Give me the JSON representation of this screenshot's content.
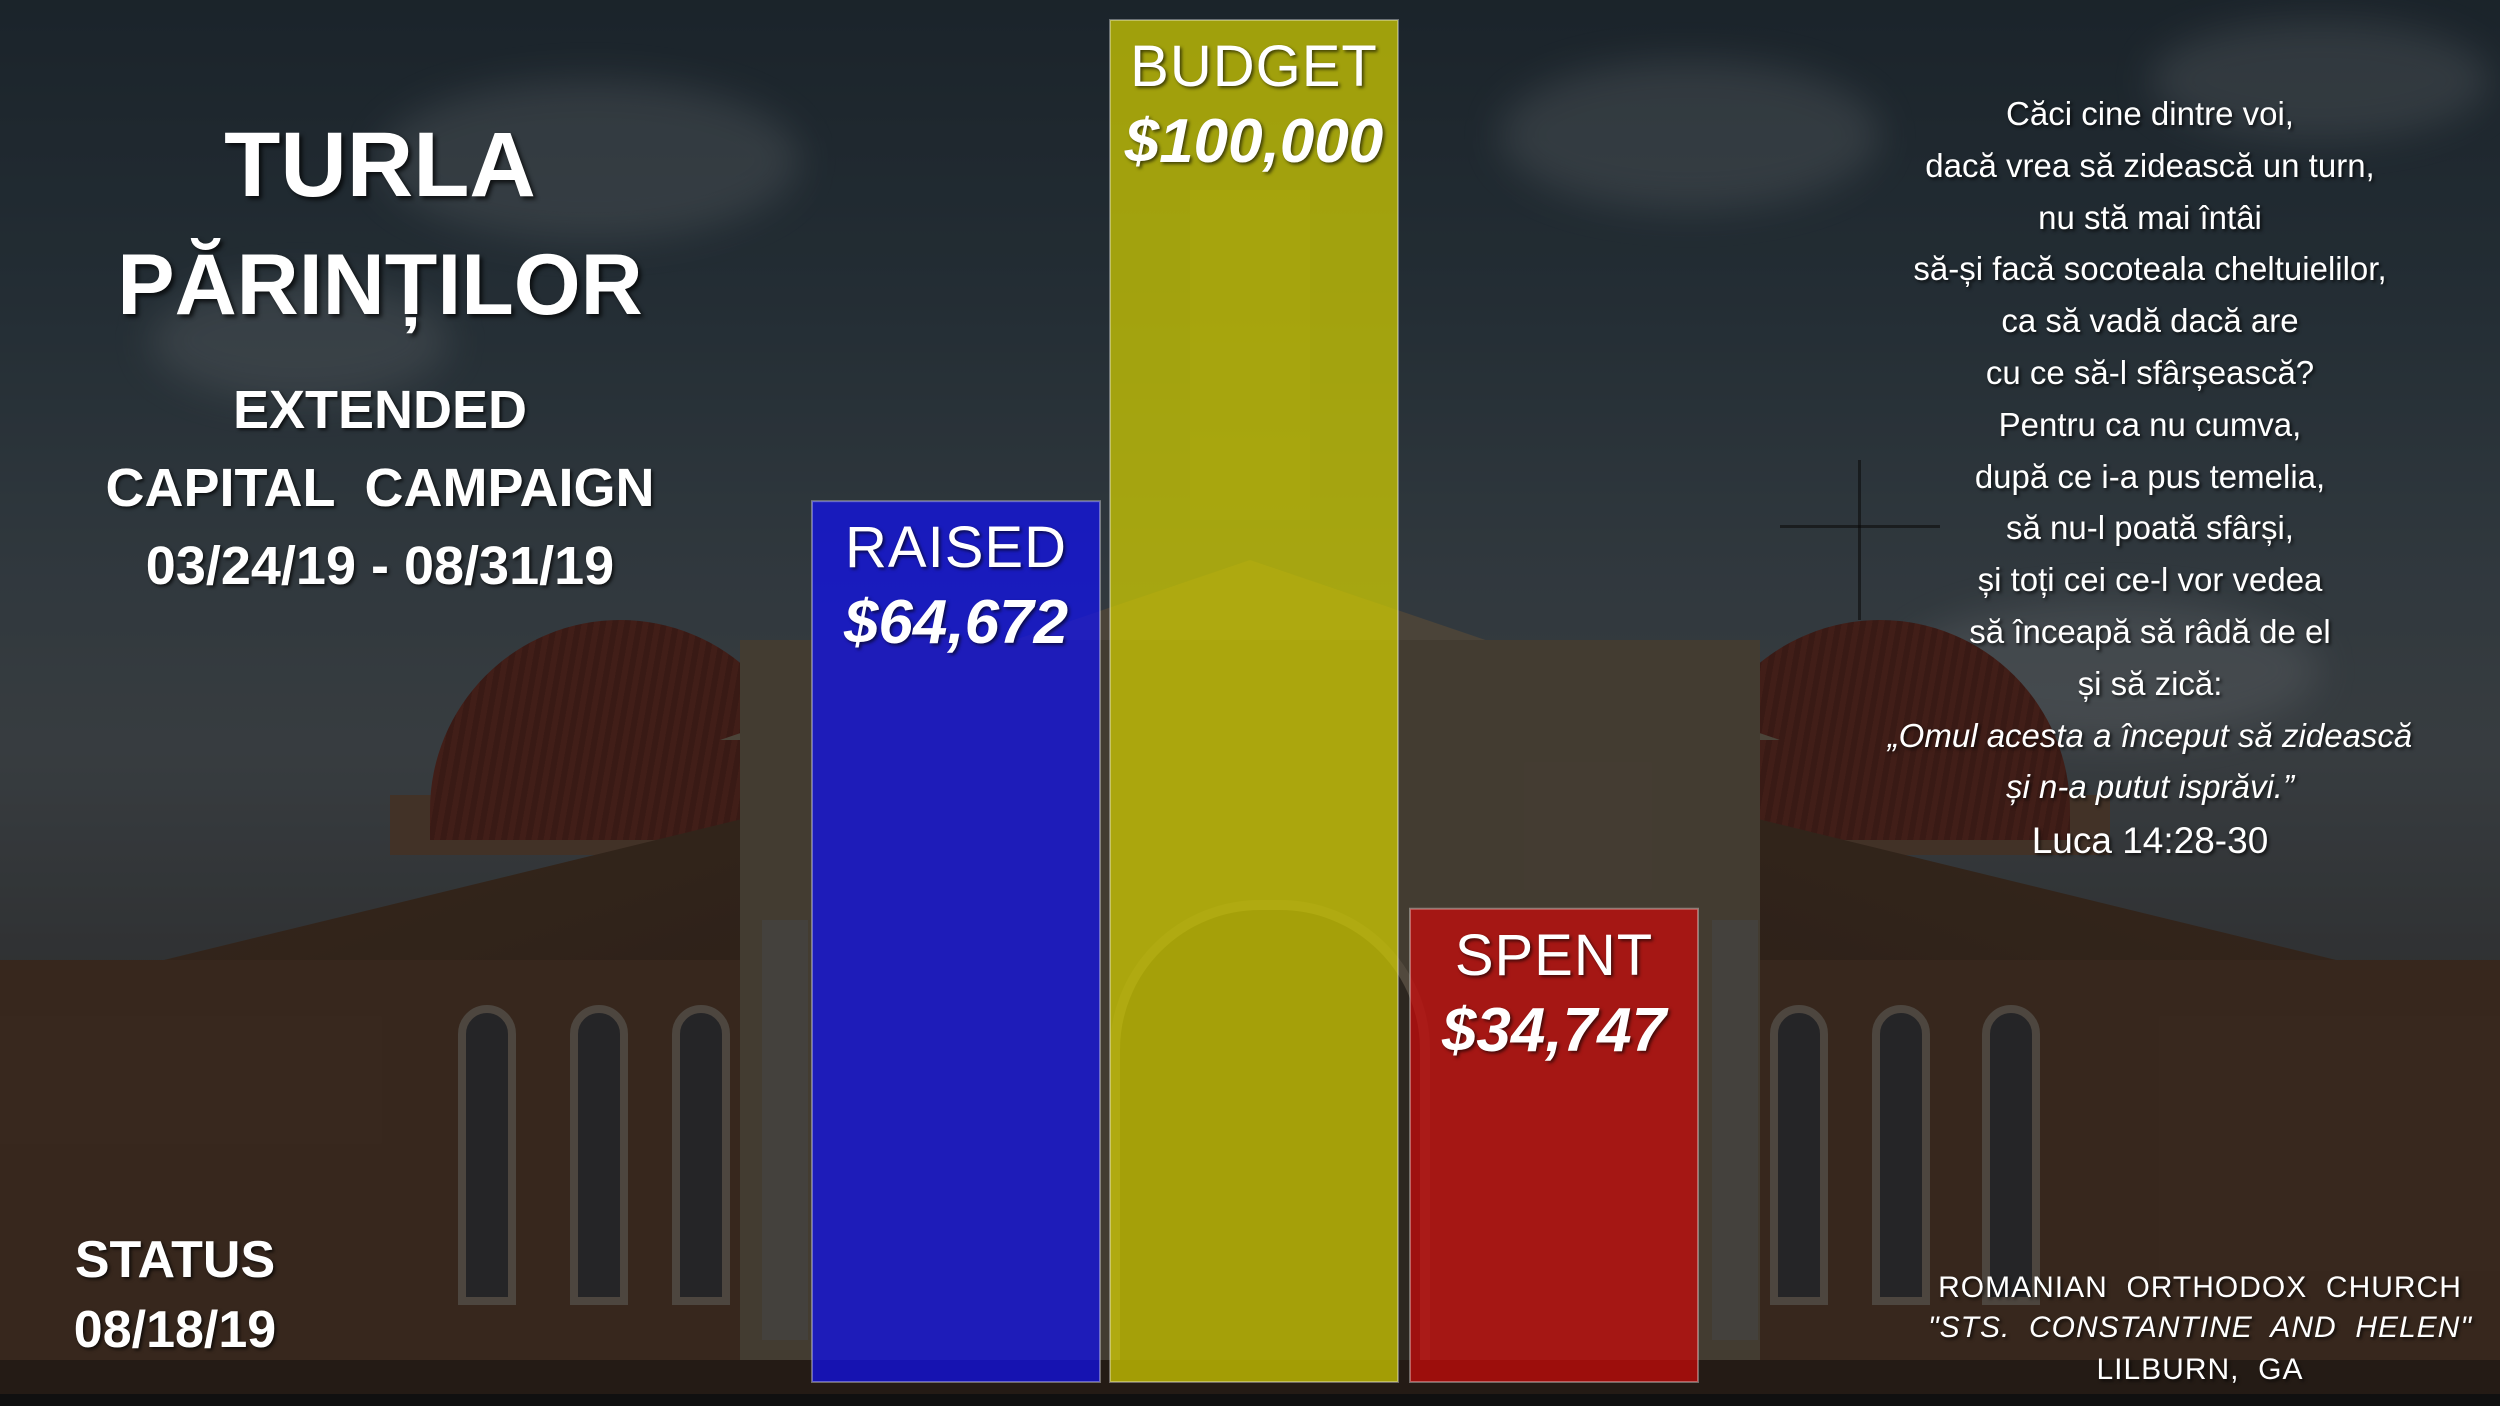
{
  "campaign": {
    "title_line1": "TURLA",
    "title_line2": "PĂRINȚILOR",
    "subtitle_line1": "EXTENDED",
    "subtitle_line2": "CAPITAL  CAMPAIGN",
    "date_range": "03/24/19 - 08/31/19"
  },
  "status": {
    "label": "STATUS",
    "date": "08/18/19"
  },
  "verse": {
    "lines": [
      "Căci cine dintre voi,",
      "dacă vrea să zidească un turn,",
      "nu stă mai întâi",
      "să-și facă socoteala cheltuielilor,",
      "ca să vadă dacă are",
      "cu ce să-l sfârșească?",
      "Pentru ca nu cumva,",
      "după ce i-a pus temelia,",
      "să nu-l poată sfârși,",
      "și toți cei ce-l vor vedea",
      "să înceapă să râdă de el",
      "și să zică:"
    ],
    "quote_lines": [
      "„Omul acesta a început să zidească",
      "și n-a putut isprăvi.”"
    ],
    "reference": "Luca 14:28-30"
  },
  "church": {
    "line1": "ROMANIAN  ORTHODOX  CHURCH",
    "line2": "\"STS.  CONSTANTINE  AND  HELEN\"",
    "line3": "LILBURN,  GA"
  },
  "chart_data": {
    "type": "bar",
    "categories": [
      "RAISED",
      "BUDGET",
      "SPENT"
    ],
    "values": [
      64672,
      100000,
      34747
    ],
    "value_labels": [
      "$64,672",
      "$100,000",
      "$34,747"
    ],
    "colors": [
      "#1010ee",
      "#d4d000",
      "#cc0a0a"
    ],
    "ylim": [
      0,
      100000
    ],
    "grid": false,
    "legend": "none"
  }
}
